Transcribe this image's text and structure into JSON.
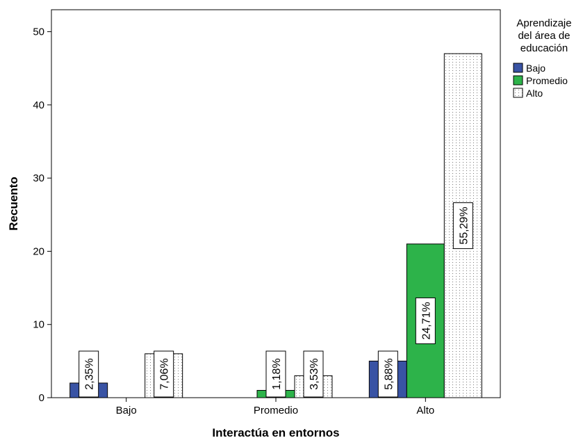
{
  "chart_data": {
    "type": "bar",
    "xlabel": "Interactúa en entornos",
    "ylabel": "Recuento",
    "categories": [
      "Bajo",
      "Promedio",
      "Alto"
    ],
    "ylim": [
      0,
      53
    ],
    "yticks": [
      "0",
      "10",
      "20",
      "30",
      "40",
      "50"
    ],
    "legend": {
      "title_lines": [
        "Aprendizaje",
        "del área de",
        "educación"
      ],
      "placement": "right"
    },
    "series": [
      {
        "name": "Bajo",
        "color": "#3953a4",
        "pattern": "solid",
        "values": [
          2,
          0,
          5
        ],
        "labels": [
          "2,35%",
          "",
          "5,88%"
        ]
      },
      {
        "name": "Promedio",
        "color": "#2db34a",
        "pattern": "solid",
        "values": [
          0,
          1,
          21
        ],
        "labels": [
          "",
          "1,18%",
          "24,71%"
        ]
      },
      {
        "name": "Alto",
        "color": "#ffffff",
        "pattern": "dotted",
        "values": [
          6,
          3,
          47
        ],
        "labels": [
          "7,06%",
          "3,53%",
          "55,29%"
        ]
      }
    ]
  }
}
